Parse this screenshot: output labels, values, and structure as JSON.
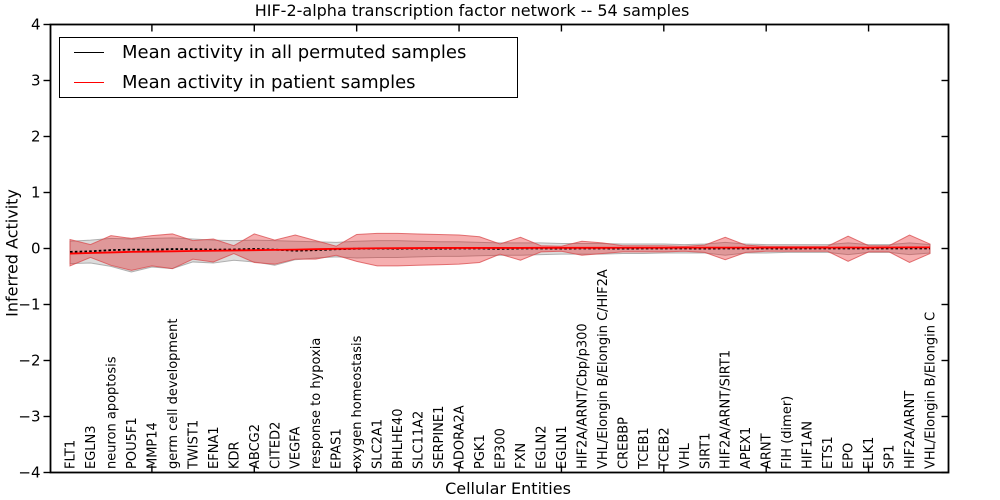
{
  "chart_data": {
    "type": "line",
    "title": "HIF-2-alpha transcription factor network -- 54 samples",
    "xlabel": "Cellular Entities",
    "ylabel": "Inferred Activity",
    "ylim": [
      -4,
      4
    ],
    "yticks": [
      -4,
      -3,
      -2,
      -1,
      0,
      1,
      2,
      3,
      4
    ],
    "xtick_indices": [
      4,
      9,
      14,
      19,
      24,
      29,
      34,
      39
    ],
    "grid": false,
    "legend_position": "upper left",
    "categories": [
      "FLT1",
      "EGLN3",
      "neuron apoptosis",
      "POU5F1",
      "MMP14",
      "germ cell development",
      "TWIST1",
      "EFNA1",
      "KDR",
      "ABCG2",
      "CITED2",
      "VEGFA",
      "response to hypoxia",
      "EPAS1",
      "oxygen homeostasis",
      "SLC2A1",
      "BHLHE40",
      "SLC11A2",
      "SERPINE1",
      "ADORA2A",
      "PGK1",
      "EP300",
      "FXN",
      "EGLN2",
      "EGLN1",
      "HIF2A/ARNT/Cbp/p300",
      "VHL/Elongin B/Elongin C/HIF2A",
      "CREBBP",
      "TCEB1",
      "TCEB2",
      "VHL",
      "SIRT1",
      "HIF2A/ARNT/SIRT1",
      "APEX1",
      "ARNT",
      "FIH (dimer)",
      "HIF1AN",
      "ETS1",
      "EPO",
      "ELK1",
      "SP1",
      "HIF2A/ARNT",
      "VHL/Elongin B/Elongin C"
    ],
    "series": [
      {
        "name": "Mean activity in all permuted samples",
        "color": "#000000",
        "line_style": "dotted",
        "values": [
          -0.06,
          -0.05,
          -0.028,
          -0.02,
          -0.022,
          -0.01,
          -0.012,
          -0.02,
          -0.018,
          -0.008,
          -0.02,
          -0.04,
          -0.03,
          -0.014,
          -0.004,
          0,
          -0.004,
          0,
          -0.004,
          0,
          0,
          -0.008,
          0,
          0,
          -0.002,
          0,
          0,
          -0.002,
          0,
          0,
          0,
          -0.002,
          0,
          0,
          0,
          -0.002,
          0,
          0,
          0,
          0,
          0,
          0,
          0
        ],
        "band_upper": [
          0.13,
          0.15,
          0.18,
          0.17,
          0.18,
          0.19,
          0.17,
          0.15,
          0.14,
          0.15,
          0.14,
          0.13,
          0.12,
          0.11,
          0.13,
          0.14,
          0.14,
          0.13,
          0.12,
          0.12,
          0.11,
          0.1,
          0.1,
          0.1,
          0.09,
          0.09,
          0.09,
          0.08,
          0.08,
          0.08,
          0.07,
          0.08,
          0.11,
          0.08,
          0.07,
          0.07,
          0.07,
          0.07,
          0.1,
          0.07,
          0.07,
          0.1,
          0.07
        ],
        "band_lower": [
          -0.27,
          -0.26,
          -0.32,
          -0.42,
          -0.33,
          -0.36,
          -0.24,
          -0.26,
          -0.21,
          -0.24,
          -0.3,
          -0.2,
          -0.17,
          -0.15,
          -0.17,
          -0.16,
          -0.16,
          -0.15,
          -0.14,
          -0.14,
          -0.13,
          -0.12,
          -0.12,
          -0.11,
          -0.1,
          -0.1,
          -0.1,
          -0.09,
          -0.09,
          -0.08,
          -0.08,
          -0.08,
          -0.12,
          -0.08,
          -0.08,
          -0.07,
          -0.07,
          -0.07,
          -0.11,
          -0.07,
          -0.07,
          -0.11,
          -0.08
        ],
        "band_fill": "#808080",
        "band_fill_opacity": 0.28,
        "band_edge": "#999999"
      },
      {
        "name": "Mean activity in patient samples",
        "color": "#ff0000",
        "line_style": "solid",
        "values": [
          -0.09,
          -0.08,
          -0.07,
          -0.06,
          -0.055,
          -0.05,
          -0.045,
          -0.04,
          -0.035,
          -0.03,
          -0.025,
          -0.02,
          -0.012,
          -0.006,
          0,
          0.004,
          0.006,
          0.008,
          0.01,
          0.01,
          0.01,
          0.01,
          0.01,
          0.012,
          0.012,
          0.012,
          0.012,
          0.014,
          0.014,
          0.014,
          0.015,
          0.015,
          0.016,
          0.015,
          0.015,
          0.015,
          0.016,
          0.016,
          0.018,
          0.016,
          0.018,
          0.02,
          0.02
        ],
        "band_upper": [
          0.16,
          0.07,
          0.23,
          0.18,
          0.23,
          0.26,
          0.14,
          0.17,
          0.05,
          0.26,
          0.15,
          0.24,
          0.14,
          0.04,
          0.25,
          0.27,
          0.27,
          0.26,
          0.25,
          0.24,
          0.21,
          0.08,
          0.2,
          0.05,
          0.04,
          0.13,
          0.1,
          0.05,
          0.05,
          0.05,
          0.04,
          0.06,
          0.2,
          0.06,
          0.04,
          0.04,
          0.04,
          0.04,
          0.22,
          0.05,
          0.05,
          0.24,
          0.08
        ],
        "band_lower": [
          -0.31,
          -0.16,
          -0.3,
          -0.39,
          -0.31,
          -0.36,
          -0.19,
          -0.24,
          -0.09,
          -0.25,
          -0.28,
          -0.19,
          -0.19,
          -0.12,
          -0.23,
          -0.31,
          -0.31,
          -0.3,
          -0.29,
          -0.28,
          -0.25,
          -0.1,
          -0.21,
          -0.06,
          -0.05,
          -0.12,
          -0.09,
          -0.06,
          -0.06,
          -0.06,
          -0.05,
          -0.07,
          -0.2,
          -0.07,
          -0.05,
          -0.05,
          -0.05,
          -0.05,
          -0.23,
          -0.06,
          -0.06,
          -0.25,
          -0.09
        ],
        "band_fill": "#e41a1c",
        "band_fill_opacity": 0.35,
        "band_edge": "#d94a4c"
      }
    ]
  },
  "legend": {
    "entries": [
      {
        "label": "Mean activity in all permuted samples",
        "color": "#000000"
      },
      {
        "label": "Mean activity in patient samples",
        "color": "#ff0000"
      }
    ]
  }
}
